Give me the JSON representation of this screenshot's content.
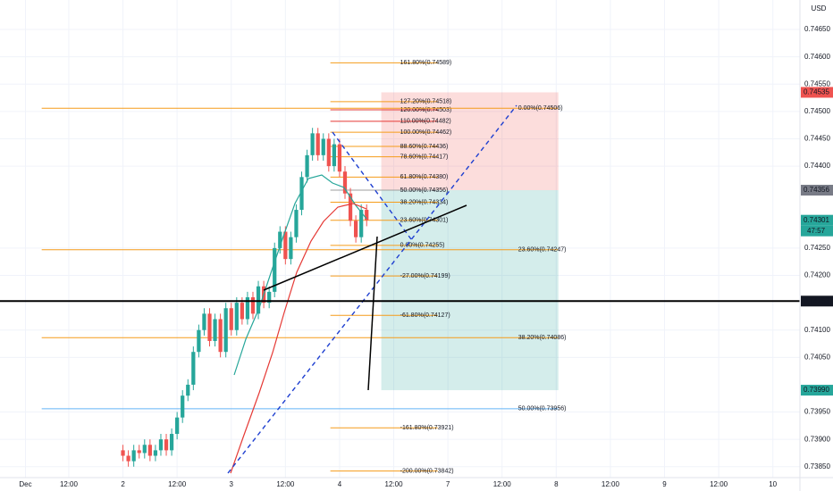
{
  "chart_data": {
    "type": "candlestick",
    "currency": "USD",
    "xlim": [
      -0.27,
      14.5
    ],
    "ylim": [
      0.7383,
      0.74704
    ],
    "grid": true,
    "up_color": "#26a69a",
    "down_color": "#ef5350",
    "xticks": [
      {
        "value": 0.2,
        "label": "Dec"
      },
      {
        "value": 1,
        "label": "12:00"
      },
      {
        "value": 2,
        "label": "2"
      },
      {
        "value": 3,
        "label": "12:00"
      },
      {
        "value": 4,
        "label": "3"
      },
      {
        "value": 5,
        "label": "12:00"
      },
      {
        "value": 6,
        "label": "4"
      },
      {
        "value": 7,
        "label": "12:00"
      },
      {
        "value": 8,
        "label": "7"
      },
      {
        "value": 9,
        "label": "12:00"
      },
      {
        "value": 10,
        "label": "8"
      },
      {
        "value": 11,
        "label": "12:00"
      },
      {
        "value": 12,
        "label": "9"
      },
      {
        "value": 13,
        "label": "12:00"
      },
      {
        "value": 14,
        "label": "10"
      }
    ],
    "yticks": [
      {
        "value": 0.7465,
        "label": "0.74650"
      },
      {
        "value": 0.746,
        "label": "0.74600"
      },
      {
        "value": 0.7455,
        "label": "0.74550"
      },
      {
        "value": 0.745,
        "label": "0.74500"
      },
      {
        "value": 0.7445,
        "label": "0.74450"
      },
      {
        "value": 0.744,
        "label": "0.74400"
      },
      {
        "value": 0.7425,
        "label": "0.74250"
      },
      {
        "value": 0.742,
        "label": "0.74200"
      },
      {
        "value": 0.741,
        "label": "0.74100"
      },
      {
        "value": 0.7405,
        "label": "0.74050"
      },
      {
        "value": 0.7395,
        "label": "0.73950"
      },
      {
        "value": 0.739,
        "label": "0.73900"
      },
      {
        "value": 0.7385,
        "label": "0.73850"
      }
    ],
    "x": [
      2.0,
      2.1,
      2.2,
      2.3,
      2.4,
      2.5,
      2.6,
      2.7,
      2.8,
      2.9,
      3.0,
      3.1,
      3.2,
      3.3,
      3.4,
      3.5,
      3.6,
      3.7,
      3.8,
      3.9,
      4.0,
      4.1,
      4.2,
      4.3,
      4.4,
      4.5,
      4.6,
      4.7,
      4.8,
      4.9,
      5.0,
      5.1,
      5.2,
      5.3,
      5.4,
      5.5,
      5.6,
      5.7,
      5.8,
      5.9,
      6.0,
      6.1,
      6.2,
      6.3,
      6.4,
      6.5
    ],
    "open": [
      0.7388,
      0.7387,
      0.7386,
      0.7388,
      0.73875,
      0.7389,
      0.7387,
      0.7388,
      0.739,
      0.7388,
      0.7391,
      0.7394,
      0.7398,
      0.74,
      0.7406,
      0.741,
      0.7413,
      0.7408,
      0.7412,
      0.7406,
      0.7414,
      0.741,
      0.7415,
      0.7412,
      0.7416,
      0.7413,
      0.7418,
      0.7415,
      0.7417,
      0.7425,
      0.7428,
      0.7423,
      0.7427,
      0.7432,
      0.7438,
      0.7442,
      0.7446,
      0.7442,
      0.7445,
      0.744,
      0.7444,
      0.7439,
      0.7435,
      0.743,
      0.7427,
      0.7432
    ],
    "high": [
      0.7389,
      0.7388,
      0.7389,
      0.7389,
      0.739,
      0.739,
      0.7389,
      0.7391,
      0.7391,
      0.7392,
      0.7395,
      0.7399,
      0.7401,
      0.7407,
      0.7411,
      0.7414,
      0.7414,
      0.7413,
      0.7413,
      0.7415,
      0.7415,
      0.7416,
      0.7416,
      0.7417,
      0.7417,
      0.7419,
      0.7419,
      0.7418,
      0.7426,
      0.7429,
      0.7429,
      0.7428,
      0.7433,
      0.7439,
      0.7443,
      0.7447,
      0.7447,
      0.7446,
      0.7446,
      0.7445,
      0.7445,
      0.744,
      0.7436,
      0.7431,
      0.7433,
      0.7433
    ],
    "low": [
      0.7386,
      0.7385,
      0.7385,
      0.73865,
      0.73865,
      0.7386,
      0.7386,
      0.7387,
      0.7387,
      0.7387,
      0.739,
      0.7393,
      0.7397,
      0.7399,
      0.7405,
      0.7409,
      0.7407,
      0.7407,
      0.7405,
      0.7405,
      0.7409,
      0.7409,
      0.7411,
      0.7411,
      0.7412,
      0.7412,
      0.7414,
      0.7414,
      0.7416,
      0.7424,
      0.7422,
      0.7422,
      0.7426,
      0.7431,
      0.7437,
      0.7441,
      0.7441,
      0.7441,
      0.7439,
      0.7439,
      0.7438,
      0.7434,
      0.7429,
      0.7426,
      0.7426,
      0.7429
    ],
    "close": [
      0.7387,
      0.7386,
      0.7388,
      0.73875,
      0.7389,
      0.7387,
      0.7388,
      0.739,
      0.7388,
      0.7391,
      0.7394,
      0.7398,
      0.74,
      0.7406,
      0.741,
      0.7413,
      0.7408,
      0.7412,
      0.7406,
      0.7414,
      0.741,
      0.7415,
      0.7412,
      0.7416,
      0.7413,
      0.7418,
      0.7415,
      0.7417,
      0.7425,
      0.7428,
      0.7423,
      0.7427,
      0.7432,
      0.7438,
      0.7442,
      0.7446,
      0.7442,
      0.7445,
      0.744,
      0.7444,
      0.7439,
      0.7435,
      0.743,
      0.7427,
      0.7432,
      0.74301
    ],
    "fib_sets": [
      {
        "xrange": [
          5.83,
          7.81
        ],
        "levels": [
          {
            "label": "161.80%(0.74589)",
            "value": 0.74589,
            "color": "#f59c1a"
          },
          {
            "label": "127.20%(0.74518)",
            "value": 0.74518,
            "color": "#f59c1a"
          },
          {
            "label": "120.00%(0.74503)",
            "value": 0.74503,
            "color": "#e53935"
          },
          {
            "label": "110.00%(0.74482)",
            "value": 0.74482,
            "color": "#e53935"
          },
          {
            "label": "100.00%(0.74462)",
            "value": 0.74462,
            "color": "#f59c1a"
          },
          {
            "label": "88.60%(0.74436)",
            "value": 0.74436,
            "color": "#f59c1a"
          },
          {
            "label": "78.60%(0.74417)",
            "value": 0.74417,
            "color": "#f59c1a"
          },
          {
            "label": "61.80%(0.74380)",
            "value": 0.7438,
            "color": "#f59c1a"
          },
          {
            "label": "50.00%(0.74356)",
            "value": 0.74356,
            "color": "#9e9e9e"
          },
          {
            "label": "38.20%(0.74334)",
            "value": 0.74334,
            "color": "#f59c1a"
          },
          {
            "label": "23.60%(0.74301)",
            "value": 0.74301,
            "color": "#f59c1a"
          },
          {
            "label": "0.00%(0.74255)",
            "value": 0.74255,
            "color": "#f59c1a"
          },
          {
            "label": "-27.00%(0.74199)",
            "value": 0.74199,
            "color": "#f59c1a"
          },
          {
            "label": "-61.80%(0.74127)",
            "value": 0.74127,
            "color": "#f59c1a"
          },
          {
            "label": "-161.80%(0.73921)",
            "value": 0.73921,
            "color": "#f59c1a"
          },
          {
            "label": "-200.00%(0.73842)",
            "value": 0.73842,
            "color": "#f59c1a"
          }
        ]
      },
      {
        "xrange": [
          0.5,
          10.04
        ],
        "levels": [
          {
            "label": "0.00%(0.74506)",
            "value": 0.74506,
            "color": "#f59c1a"
          },
          {
            "label": "23.60%(0.74247)",
            "value": 0.74247,
            "color": "#f59c1a"
          },
          {
            "label": "38.20%(0.74086)",
            "value": 0.74086,
            "color": "#f59c1a"
          },
          {
            "label": "50.00%(0.73956)",
            "value": 0.73956,
            "color": "#64b5f6"
          }
        ]
      }
    ],
    "position": {
      "xrange": [
        6.77,
        10.04
      ],
      "target": 0.74535,
      "entry": 0.74356,
      "stop": 0.7399
    },
    "horizontal_line": 0.74153,
    "price_labels": [
      {
        "label": "0.74535",
        "value": 0.74535,
        "color": "#ef5350"
      },
      {
        "label": "0.74356",
        "value": 0.74356,
        "color": "#787b86"
      },
      {
        "label": "0.74301",
        "value": 0.74301,
        "color": "#26a69a"
      },
      {
        "label": "0.74153",
        "value": 0.74153,
        "color": "#131722"
      },
      {
        "label": "0.73990",
        "value": 0.7399,
        "color": "#26a69a"
      }
    ],
    "countdown": "47:57"
  }
}
